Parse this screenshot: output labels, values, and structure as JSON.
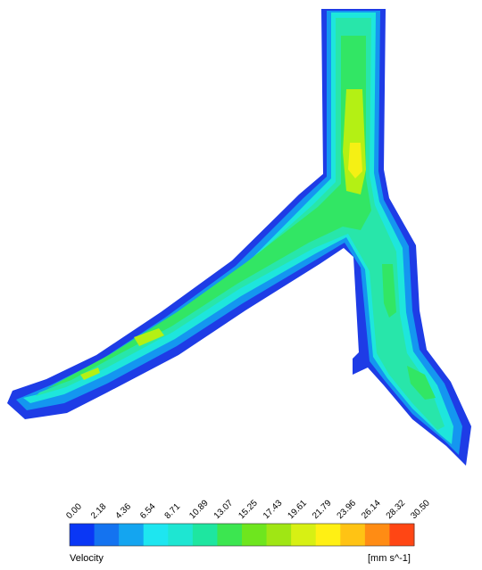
{
  "legend": {
    "title": "Velocity",
    "units": "[mm s^-1]",
    "ticks": [
      "0.00",
      "2.18",
      "4.36",
      "6.54",
      "8.71",
      "10.89",
      "13.07",
      "15.25",
      "17.43",
      "19.61",
      "21.79",
      "23.96",
      "26.14",
      "28.32",
      "30.50"
    ],
    "colors": [
      "#0a37f5",
      "#1473f0",
      "#14a5f0",
      "#1ee6f0",
      "#1ee6d2",
      "#1ee6a0",
      "#3ce650",
      "#6ee61e",
      "#a0e614",
      "#d7f014",
      "#fff014",
      "#ffc314",
      "#ff8c14",
      "#ff4614"
    ]
  },
  "vessel_colors": {
    "outer": "#1e3ce6",
    "wall": "#1496f0",
    "mid": "#1ee6dc",
    "core": "#28e6aa",
    "fast": "#32e664",
    "peak": "#b4f014",
    "max": "#f5f014"
  }
}
